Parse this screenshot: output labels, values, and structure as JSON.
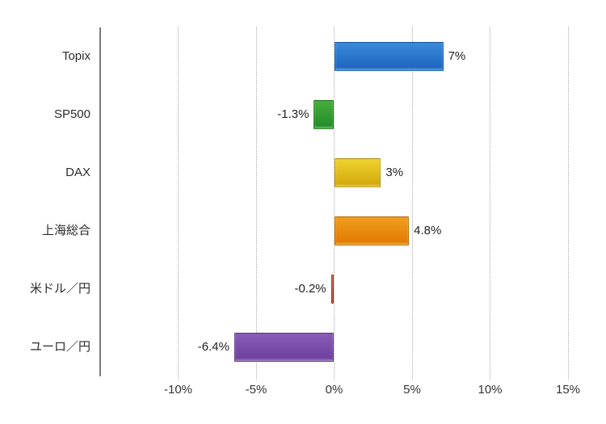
{
  "chart_data": {
    "type": "bar",
    "orientation": "horizontal",
    "title": "",
    "categories": [
      "Topix",
      "SP500",
      "DAX",
      "上海総合",
      "米ドル／円",
      "ユーロ／円"
    ],
    "values": [
      7,
      -1.3,
      3,
      4.8,
      -0.2,
      -6.4
    ],
    "value_labels": [
      "7%",
      "-1.3%",
      "3%",
      "4.8%",
      "-0.2%",
      "-6.4%"
    ],
    "series_colors": [
      {
        "name": "blue",
        "top": "#3a8ada",
        "bottom": "#1c64bf"
      },
      {
        "name": "green",
        "top": "#47ad3b",
        "bottom": "#1f8b28"
      },
      {
        "name": "yellow",
        "top": "#eed32f",
        "bottom": "#d2a50a"
      },
      {
        "name": "orange",
        "top": "#f29d1f",
        "bottom": "#e07900"
      },
      {
        "name": "red",
        "top": "#cc4733",
        "bottom": "#a93322"
      },
      {
        "name": "purple",
        "top": "#8a5cb8",
        "bottom": "#6b3f9c"
      }
    ],
    "x_axis": {
      "min": -15,
      "max": 15,
      "tick_values": [
        -10,
        -5,
        0,
        5,
        10,
        15
      ],
      "tick_labels": [
        "-10%",
        "-5%",
        "0%",
        "5%",
        "10%",
        "15%"
      ],
      "grid": "dotted"
    },
    "xlabel": "",
    "ylabel": "",
    "legend": "none",
    "background_color": "#ffffff",
    "gridline_color": "#a9a9a9",
    "axis_line_color": "#7a7a7a",
    "text_color": "#2b2b2b"
  }
}
